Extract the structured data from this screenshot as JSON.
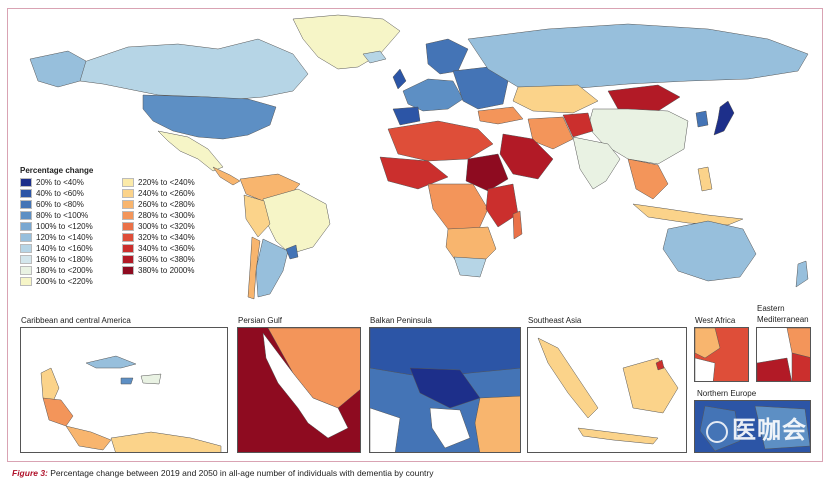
{
  "legend": {
    "title": "Percentage change",
    "items": [
      {
        "label": "20% to <40%",
        "color": "#1d2f8a"
      },
      {
        "label": "40% to <60%",
        "color": "#2c55a6"
      },
      {
        "label": "60% to <80%",
        "color": "#4474b6"
      },
      {
        "label": "80% to <100%",
        "color": "#5d8fc4"
      },
      {
        "label": "100% to <120%",
        "color": "#7aa8d1"
      },
      {
        "label": "120% to <140%",
        "color": "#97bfdc"
      },
      {
        "label": "140% to <160%",
        "color": "#b6d5e6"
      },
      {
        "label": "160% to <180%",
        "color": "#d3e6ec"
      },
      {
        "label": "180% to <200%",
        "color": "#e9f2e3"
      },
      {
        "label": "200% to <220%",
        "color": "#f6f5c7"
      },
      {
        "label": "220% to <240%",
        "color": "#fbeaa9"
      },
      {
        "label": "240% to <260%",
        "color": "#fbd38a"
      },
      {
        "label": "260% to <280%",
        "color": "#f8b56e"
      },
      {
        "label": "280% to <300%",
        "color": "#f3955a"
      },
      {
        "label": "300% to <320%",
        "color": "#ea7148"
      },
      {
        "label": "320% to <340%",
        "color": "#de4e39"
      },
      {
        "label": "340% to <360%",
        "color": "#cb2f2d"
      },
      {
        "label": "360% to <380%",
        "color": "#b21a26"
      },
      {
        "label": "380% to 2000%",
        "color": "#8e0b20"
      }
    ]
  },
  "insets": {
    "caribbean": "Caribbean and central America",
    "persian_gulf": "Persian Gulf",
    "balkan": "Balkan Peninsula",
    "southeast_asia": "Southeast Asia",
    "west_africa": "West Africa",
    "eastern_med_line1": "Eastern",
    "eastern_med_line2": "Mediterranean",
    "northern_europe": "Northern Europe"
  },
  "caption": {
    "figure": "Figure 3:",
    "text": " Percentage change between 2019 and 2050 in all-age number of individuals with dementia by country"
  },
  "watermark": "医咖会"
}
